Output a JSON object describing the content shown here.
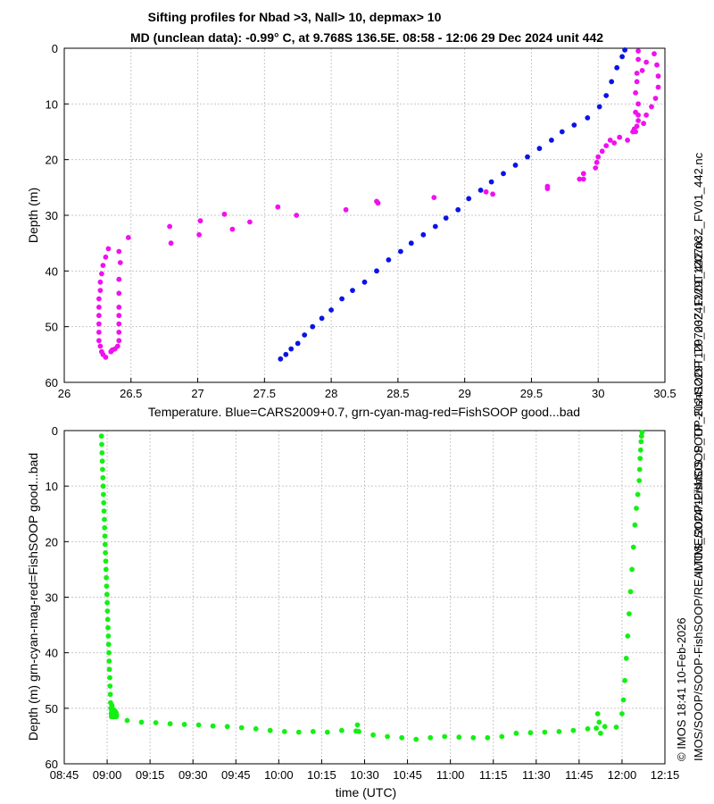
{
  "figure": {
    "title_line1": "Sifting profiles for Nbad >3, Nall> 10, depmax> 10",
    "title_line2": "MD (unclean data): -0.99° C, at 9.768S 136.5E. 08:58 - 12:06 29 Dec 2024 unit 442",
    "side_text_top": "IMOS_SOOP-FishSOOP_TP_20241229T120703Z_FV01_442.nc",
    "side_text_bottom_1": "© IMOS 18:41 10-Feb-2026",
    "side_text_bottom_2": "IMOS/SOOP/SOOP-FishSOOP/REALTIME/2024/12/IMOS_SOOP-FishSOOP_TP_20241229T120703Z_FV01_442.nc",
    "colors": {
      "blue": "#0a14e6",
      "magenta": "#f010f0",
      "green": "#14f014",
      "grid": "#c8c8c8"
    }
  },
  "chart_data": [
    {
      "type": "scatter",
      "xlabel": "Temperature. Blue=CARS2009+0.7, grn-cyan-mag-red=FishSOOP good...bad",
      "ylabel": "Depth (m)",
      "xlim": [
        26,
        30.5
      ],
      "ylim": [
        60,
        0
      ],
      "xticks": [
        "26",
        "26.5",
        "27",
        "27.5",
        "28",
        "28.5",
        "29",
        "29.5",
        "30",
        "30.5"
      ],
      "yticks": [
        "0",
        "10",
        "20",
        "30",
        "40",
        "50",
        "60"
      ],
      "grid": true,
      "series": [
        {
          "color": "blue",
          "x": [
            27.62,
            27.66,
            27.7,
            27.75,
            27.8,
            27.86,
            27.93,
            28.0,
            28.08,
            28.16,
            28.25,
            28.34,
            28.43,
            28.52,
            28.6,
            28.69,
            28.78,
            28.86,
            28.95,
            29.03,
            29.12,
            29.2,
            29.29,
            29.38,
            29.47,
            29.56,
            29.65,
            29.73,
            29.82,
            29.92,
            30.01,
            30.06,
            30.1,
            30.14,
            30.18,
            30.2
          ],
          "y": [
            55.8,
            55.0,
            54.0,
            53.0,
            51.5,
            50.0,
            48.5,
            47.0,
            45.0,
            43.5,
            42.0,
            40.0,
            38.0,
            36.5,
            35.0,
            33.5,
            32.0,
            30.5,
            29.0,
            27.0,
            25.5,
            24.0,
            22.5,
            21.0,
            19.5,
            18.0,
            16.5,
            15.0,
            13.8,
            12.5,
            10.5,
            8.5,
            6.0,
            3.5,
            1.5,
            0.3
          ]
        },
        {
          "color": "magenta",
          "x": [
            26.31,
            26.29,
            26.28,
            26.27,
            26.26,
            26.26,
            26.26,
            26.26,
            26.26,
            26.26,
            26.27,
            26.27,
            26.28,
            26.29,
            26.31,
            26.33,
            26.35,
            26.38,
            26.4,
            26.41,
            26.41,
            26.41,
            26.41,
            26.41,
            26.41,
            26.41,
            26.42,
            26.41,
            26.48,
            26.36,
            26.8,
            26.79,
            27.01,
            27.02,
            27.2,
            27.26,
            27.39,
            27.6,
            27.74,
            28.11,
            28.34,
            28.35,
            28.77,
            29.16,
            29.21,
            29.62,
            29.62,
            29.86,
            29.89,
            29.89,
            29.98,
            29.99,
            30.0,
            30.03,
            30.06,
            30.09,
            30.12,
            30.16,
            30.22,
            30.26,
            30.27,
            30.29,
            30.3,
            30.3,
            30.3,
            30.28,
            30.34,
            30.36,
            30.4,
            30.43,
            30.45,
            30.45,
            30.44,
            30.42,
            30.36,
            30.33,
            30.29,
            30.28,
            30.29,
            30.3,
            30.3,
            30.28
          ],
          "y": [
            55.5,
            55.0,
            54.5,
            53.5,
            52.5,
            51.0,
            49.5,
            48.0,
            46.5,
            45.0,
            43.5,
            42.0,
            40.5,
            39.0,
            37.5,
            36.0,
            54.5,
            54.0,
            53.5,
            52.5,
            51.0,
            49.5,
            48.0,
            46.5,
            44.0,
            41.5,
            38.5,
            36.5,
            34.0,
            54.2,
            35.0,
            32.0,
            33.5,
            31.0,
            29.8,
            32.5,
            31.2,
            28.5,
            30.0,
            29.0,
            27.5,
            27.8,
            26.8,
            25.8,
            26.2,
            24.8,
            25.2,
            23.5,
            23.5,
            22.5,
            21.5,
            20.5,
            19.5,
            18.5,
            17.5,
            16.5,
            17.0,
            16.0,
            16.5,
            15.0,
            14.5,
            14.0,
            13.0,
            12.0,
            10.0,
            11.5,
            13.5,
            12.0,
            10.5,
            9.0,
            7.0,
            5.0,
            3.0,
            1.0,
            2.5,
            4.0,
            6.0,
            8.0,
            4.5,
            2.0,
            0.5,
            15.0
          ]
        }
      ]
    },
    {
      "type": "scatter",
      "xlabel": "time (UTC)",
      "ylabel": "Depth (m) grn-cyan-mag-red=FishSOOP good...bad",
      "xlim": [
        "08:45",
        "12:15"
      ],
      "ylim": [
        60,
        0
      ],
      "xticks": [
        "08:45",
        "09:00",
        "09:15",
        "09:30",
        "09:45",
        "10:00",
        "10:15",
        "10:30",
        "10:45",
        "11:00",
        "11:15",
        "11:30",
        "11:45",
        "12:00",
        "12:15"
      ],
      "yticks": [
        "0",
        "10",
        "20",
        "30",
        "40",
        "50",
        "60"
      ],
      "grid": true,
      "series": [
        {
          "color": "green",
          "x": [
            "08:58:00",
            "08:58:06",
            "08:58:12",
            "08:58:18",
            "08:58:24",
            "08:58:30",
            "08:58:36",
            "08:58:42",
            "08:58:48",
            "08:58:54",
            "08:59:00",
            "08:59:06",
            "08:59:12",
            "08:59:18",
            "08:59:24",
            "08:59:30",
            "08:59:36",
            "08:59:42",
            "08:59:48",
            "08:59:54",
            "09:00:00",
            "09:00:06",
            "09:00:12",
            "09:00:18",
            "09:00:24",
            "09:00:30",
            "09:00:36",
            "09:00:42",
            "09:00:48",
            "09:00:54",
            "09:01:00",
            "09:01:06",
            "09:01:12",
            "09:01:18",
            "09:01:24",
            "09:01:30",
            "09:01:36",
            "09:01:42",
            "09:01:48",
            "09:02:00",
            "09:02:06",
            "09:02:30",
            "09:02:42",
            "09:02:48",
            "09:02:54",
            "09:03:00",
            "09:03:06",
            "09:03:12",
            "09:03:18",
            "09:07",
            "09:12",
            "09:17",
            "09:22",
            "09:27",
            "09:32",
            "09:37",
            "09:42",
            "09:47",
            "09:52",
            "09:57",
            "10:02",
            "10:07",
            "10:12",
            "10:17",
            "10:22",
            "10:27",
            "10:27:30",
            "10:28",
            "10:33",
            "10:38",
            "10:43",
            "10:48",
            "10:53",
            "10:58",
            "11:03",
            "11:08",
            "11:13",
            "11:18",
            "11:23",
            "11:28",
            "11:33",
            "11:38",
            "11:43",
            "11:48",
            "11:51",
            "11:51:30",
            "11:52",
            "11:52:30",
            "11:54",
            "11:58",
            "12:00",
            "12:00:30",
            "12:01",
            "12:01:30",
            "12:02",
            "12:02:30",
            "12:03",
            "12:03:30",
            "12:04",
            "12:04:30",
            "12:05",
            "12:05:30",
            "12:06",
            "12:06:10",
            "12:06:20",
            "12:06:30",
            "12:06:40",
            "12:06:50",
            "12:07"
          ],
          "y": [
            1.0,
            2.5,
            4.0,
            5.5,
            7.0,
            8.5,
            10.0,
            11.5,
            13.0,
            14.5,
            16.0,
            17.5,
            19.0,
            20.5,
            22.0,
            23.5,
            25.0,
            26.5,
            28.0,
            29.5,
            31.0,
            32.5,
            34.0,
            35.5,
            37.0,
            38.5,
            40.0,
            41.5,
            43.0,
            44.5,
            46.0,
            47.5,
            49.0,
            50.0,
            51.0,
            51.5,
            50.5,
            49.5,
            51.2,
            51.5,
            50.2,
            51.5,
            51.3,
            50.5,
            51.0,
            51.4,
            50.8,
            51.5,
            51.2,
            52.2,
            52.5,
            52.6,
            52.8,
            52.9,
            53.0,
            53.2,
            53.3,
            53.5,
            53.7,
            54.0,
            54.2,
            54.3,
            54.2,
            54.3,
            54.0,
            54.1,
            53.0,
            54.2,
            54.8,
            55.1,
            55.3,
            55.6,
            55.3,
            55.1,
            55.2,
            55.3,
            55.3,
            55.1,
            54.5,
            54.4,
            54.3,
            54.2,
            54.0,
            53.7,
            53.6,
            51.0,
            52.5,
            54.5,
            53.3,
            53.4,
            51.0,
            48.5,
            45.0,
            41.0,
            37.0,
            33.0,
            29.0,
            25.0,
            21.0,
            17.0,
            14.0,
            11.5,
            9.0,
            7.0,
            5.0,
            3.5,
            2.0,
            1.0,
            0.3
          ]
        }
      ]
    }
  ]
}
